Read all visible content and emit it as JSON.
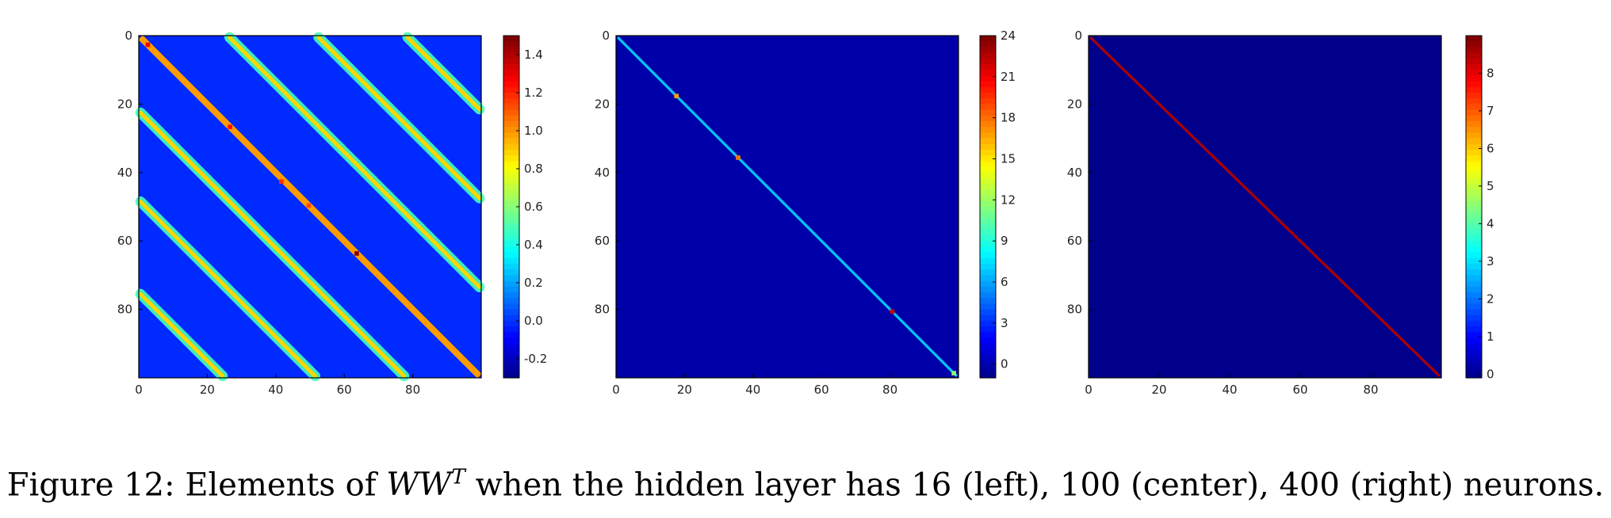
{
  "caption": {
    "prefix": "Figure 12:",
    "text_before": "Elements of",
    "math_base": "WW",
    "math_sup": "T",
    "text_after": "when the hidden layer has 16 (left), 100 (center), 400 (right) neurons."
  },
  "colormap": "jet",
  "chart_data": [
    {
      "type": "heatmap",
      "title": "",
      "xlabel": "",
      "ylabel": "",
      "matrix_size": 100,
      "xticks": [
        "0",
        "20",
        "40",
        "60",
        "80"
      ],
      "yticks": [
        "0",
        "20",
        "40",
        "60",
        "80"
      ],
      "colorbar": {
        "ticks": [
          "-0.2",
          "0.0",
          "0.2",
          "0.4",
          "0.6",
          "0.8",
          "1.0",
          "1.2",
          "1.4"
        ],
        "range": [
          -0.3,
          1.5
        ]
      },
      "background_value": 0.0,
      "diagonal_value": 1.0,
      "band_offsets": [
        -75,
        -48,
        -22,
        0,
        26,
        52,
        78
      ],
      "band_value": 0.9,
      "hotspots": [
        {
          "i": 2,
          "j": 2,
          "value": 1.3
        },
        {
          "i": 26,
          "j": 26,
          "value": 1.25
        },
        {
          "i": 42,
          "j": 41,
          "value": 1.2
        },
        {
          "i": 49,
          "j": 49,
          "value": 1.15
        },
        {
          "i": 63,
          "j": 63,
          "value": 1.5
        }
      ]
    },
    {
      "type": "heatmap",
      "title": "",
      "xlabel": "",
      "ylabel": "",
      "matrix_size": 100,
      "xticks": [
        "0",
        "20",
        "40",
        "60",
        "80"
      ],
      "yticks": [
        "0",
        "20",
        "40",
        "60",
        "80"
      ],
      "colorbar": {
        "ticks": [
          "0",
          "3",
          "6",
          "9",
          "12",
          "15",
          "18",
          "21",
          "24"
        ],
        "range": [
          -1,
          24
        ]
      },
      "background_value": 0.0,
      "diagonal_value": 7.0,
      "hotspots": [
        {
          "i": 17,
          "j": 17,
          "value": 17
        },
        {
          "i": 35,
          "j": 35,
          "value": 18
        },
        {
          "i": 80,
          "j": 80,
          "value": 22
        },
        {
          "i": 98,
          "j": 98,
          "value": 12
        }
      ]
    },
    {
      "type": "heatmap",
      "title": "",
      "xlabel": "",
      "ylabel": "",
      "matrix_size": 100,
      "xticks": [
        "0",
        "20",
        "40",
        "60",
        "80"
      ],
      "yticks": [
        "0",
        "20",
        "40",
        "60",
        "80"
      ],
      "colorbar": {
        "ticks": [
          "0",
          "1",
          "2",
          "3",
          "4",
          "5",
          "6",
          "7",
          "8"
        ],
        "range": [
          -0.1,
          9
        ]
      },
      "background_value": 0.0,
      "diagonal_value": 8.6,
      "hotspots": []
    }
  ]
}
